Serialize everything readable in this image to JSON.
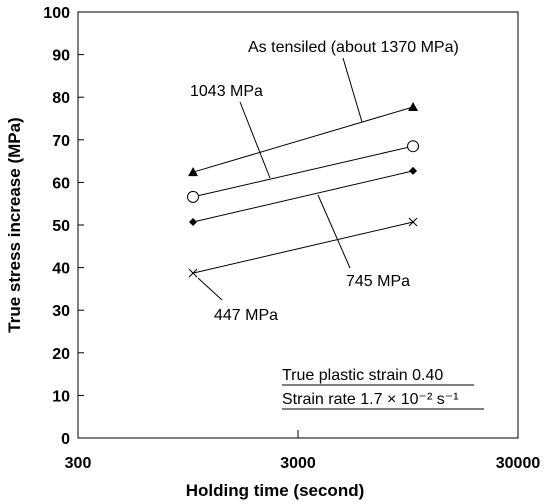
{
  "chart_data": {
    "type": "line",
    "x_label": "Holding time (second)",
    "y_label": "True stress increase (MPa)",
    "x": [
      1000,
      10000
    ],
    "series": [
      {
        "name": "As tensiled (about 1370 MPa)",
        "color": "#000000",
        "marker": "triangle",
        "values": [
          62.4,
          77.7
        ]
      },
      {
        "name": "1043 MPa",
        "color": "#000000",
        "marker": "circle",
        "values": [
          56.6,
          68.5
        ]
      },
      {
        "name": "745 MPa",
        "color": "#000000",
        "marker": "diamond",
        "values": [
          50.7,
          62.7
        ]
      },
      {
        "name": "447 MPa",
        "color": "#000000",
        "marker": "x",
        "values": [
          38.7,
          50.7
        ]
      }
    ],
    "xlim": [
      300,
      30000
    ],
    "xticks": [
      300,
      3000,
      30000
    ],
    "xscale": "log",
    "ylim": [
      0,
      100
    ],
    "yticks": [
      0,
      10,
      20,
      30,
      40,
      50,
      60,
      70,
      80,
      90,
      100
    ],
    "annotations": [
      "True plastic strain 0.40",
      "Strain rate 1.7 × 10⁻² s⁻¹"
    ]
  }
}
